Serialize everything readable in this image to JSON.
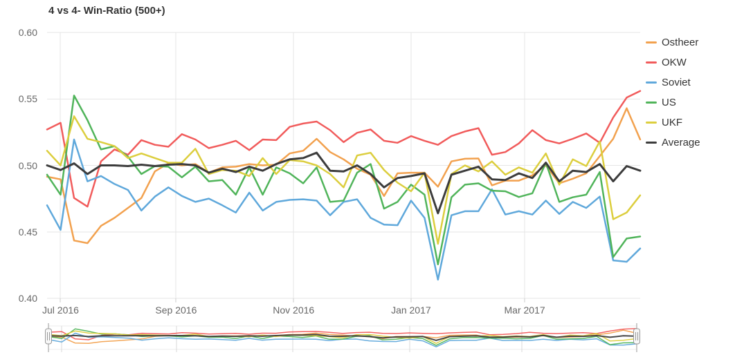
{
  "title": "4 vs 4- Win-Ratio (500+)",
  "colors": {
    "ostheer": "#F2A14E",
    "okw": "#F15B5B",
    "soviet": "#5FA8DB",
    "us": "#50B45A",
    "ukf": "#DCCE3E",
    "average": "#3C3C3C",
    "grid": "#E6E6E6",
    "axis_label": "#666666",
    "handle_stroke": "#999999",
    "handle_fill": "#F7F7F7"
  },
  "navigator": {
    "visible": true,
    "left_handle": "drag-handle",
    "right_handle": "drag-handle"
  },
  "chart_data": {
    "type": "line",
    "title": "4 vs 4- Win-Ratio (500+)",
    "xlabel": "",
    "ylabel": "",
    "grid": true,
    "legend_position": "right",
    "ylim": [
      0.4,
      0.6
    ],
    "y_ticks": [
      0.6,
      0.55,
      0.5,
      0.45,
      0.4
    ],
    "x_ticks": [
      {
        "label": "Jul 2016",
        "week": 1
      },
      {
        "label": "Sep 2016",
        "week": 9.57
      },
      {
        "label": "Nov 2016",
        "week": 18.29
      },
      {
        "label": "Jan 2017",
        "week": 27
      },
      {
        "label": "Mar 2017",
        "week": 35.43
      }
    ],
    "x_unit": "week",
    "x_range_weeks": 44,
    "series": [
      {
        "name": "Ostheer",
        "color": "#F2A14E",
        "values": [
          0.4915,
          0.4895,
          0.4435,
          0.4415,
          0.4545,
          0.4605,
          0.468,
          0.4755,
          0.4955,
          0.5015,
          0.5,
          0.501,
          0.4945,
          0.4985,
          0.499,
          0.501,
          0.5,
          0.5005,
          0.509,
          0.511,
          0.52,
          0.51,
          0.5045,
          0.4975,
          0.493,
          0.477,
          0.494,
          0.4945,
          0.4945,
          0.484,
          0.503,
          0.505,
          0.5052,
          0.485,
          0.4885,
          0.4885,
          0.4925,
          0.5,
          0.4865,
          0.49,
          0.494,
          0.507,
          0.52,
          0.543,
          0.5195
        ]
      },
      {
        "name": "OKW",
        "color": "#F15B5B",
        "values": [
          0.527,
          0.532,
          0.4755,
          0.469,
          0.503,
          0.512,
          0.508,
          0.519,
          0.5155,
          0.514,
          0.5235,
          0.5195,
          0.513,
          0.5155,
          0.5185,
          0.5115,
          0.5195,
          0.519,
          0.529,
          0.5315,
          0.533,
          0.5265,
          0.5175,
          0.5245,
          0.527,
          0.5185,
          0.517,
          0.522,
          0.5185,
          0.5155,
          0.522,
          0.5255,
          0.528,
          0.508,
          0.51,
          0.5165,
          0.5265,
          0.519,
          0.5165,
          0.52,
          0.524,
          0.517,
          0.536,
          0.551,
          0.556
        ]
      },
      {
        "name": "Soviet",
        "color": "#5FA8DB",
        "values": [
          0.47,
          0.4515,
          0.5195,
          0.488,
          0.492,
          0.486,
          0.4815,
          0.466,
          0.4765,
          0.4835,
          0.477,
          0.4725,
          0.475,
          0.47,
          0.4645,
          0.4795,
          0.466,
          0.4725,
          0.474,
          0.4745,
          0.4735,
          0.4625,
          0.4725,
          0.4745,
          0.4605,
          0.4555,
          0.455,
          0.4735,
          0.4605,
          0.414,
          0.4625,
          0.4655,
          0.4655,
          0.482,
          0.463,
          0.4655,
          0.463,
          0.4735,
          0.4635,
          0.4725,
          0.468,
          0.4765,
          0.4285,
          0.4275,
          0.4375
        ]
      },
      {
        "name": "US",
        "color": "#50B45A",
        "values": [
          0.493,
          0.478,
          0.5525,
          0.534,
          0.512,
          0.5145,
          0.5065,
          0.4935,
          0.4995,
          0.499,
          0.491,
          0.499,
          0.488,
          0.489,
          0.478,
          0.4985,
          0.478,
          0.4985,
          0.494,
          0.4865,
          0.4985,
          0.4725,
          0.4735,
          0.4945,
          0.501,
          0.4675,
          0.4725,
          0.4855,
          0.478,
          0.4255,
          0.476,
          0.4855,
          0.4865,
          0.481,
          0.4805,
          0.4762,
          0.479,
          0.502,
          0.4725,
          0.476,
          0.478,
          0.495,
          0.431,
          0.445,
          0.4465
        ]
      },
      {
        "name": "UKF",
        "color": "#DCCE3E",
        "values": [
          0.511,
          0.5,
          0.537,
          0.52,
          0.5175,
          0.5145,
          0.5055,
          0.509,
          0.5055,
          0.502,
          0.502,
          0.5125,
          0.4935,
          0.4965,
          0.496,
          0.492,
          0.5055,
          0.4935,
          0.504,
          0.503,
          0.5,
          0.4935,
          0.4835,
          0.5075,
          0.5095,
          0.4965,
          0.487,
          0.4805,
          0.4945,
          0.441,
          0.4935,
          0.5,
          0.4955,
          0.503,
          0.493,
          0.4985,
          0.4945,
          0.509,
          0.4855,
          0.5045,
          0.4995,
          0.518,
          0.4595,
          0.4645,
          0.4775
        ]
      },
      {
        "name": "Average",
        "color": "#3C3C3C",
        "values": [
          0.5,
          0.4965,
          0.5015,
          0.4935,
          0.5,
          0.5,
          0.4995,
          0.5005,
          0.4995,
          0.5005,
          0.501,
          0.5,
          0.4945,
          0.4975,
          0.495,
          0.499,
          0.496,
          0.501,
          0.5045,
          0.5055,
          0.5095,
          0.496,
          0.4955,
          0.5,
          0.4935,
          0.4835,
          0.4905,
          0.492,
          0.494,
          0.464,
          0.493,
          0.496,
          0.499,
          0.4895,
          0.489,
          0.494,
          0.4905,
          0.502,
          0.488,
          0.496,
          0.495,
          0.501,
          0.488,
          0.4995,
          0.496
        ]
      }
    ]
  }
}
